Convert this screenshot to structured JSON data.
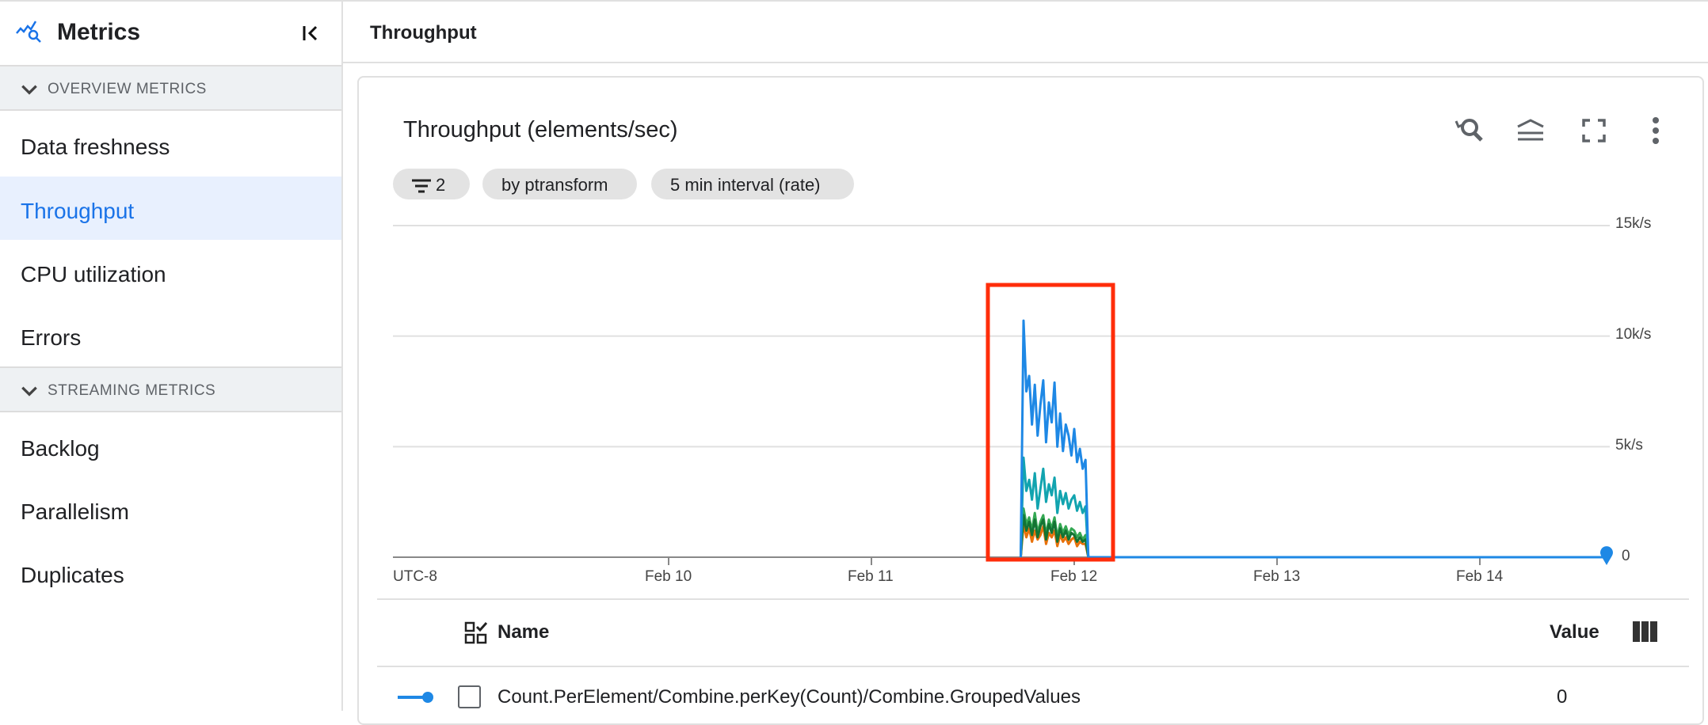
{
  "sidebar": {
    "title": "Metrics",
    "sections": [
      {
        "label": "OVERVIEW METRICS",
        "items": [
          {
            "label": "Data freshness"
          },
          {
            "label": "Throughput",
            "active": true
          },
          {
            "label": "CPU utilization"
          },
          {
            "label": "Errors"
          }
        ]
      },
      {
        "label": "STREAMING METRICS",
        "items": [
          {
            "label": "Backlog"
          },
          {
            "label": "Parallelism"
          },
          {
            "label": "Duplicates"
          }
        ]
      }
    ]
  },
  "header": {
    "title": "Throughput"
  },
  "card": {
    "title": "Throughput (elements/sec)",
    "icons": [
      "zoom-reset-icon",
      "legend-icon",
      "fullscreen-icon",
      "more-vert-icon"
    ],
    "chips": {
      "filter_count": "2",
      "group_by": "by ptransform",
      "interval": "5 min interval (rate)"
    }
  },
  "chart_data": {
    "type": "line",
    "timezone_label": "UTC-8",
    "x_ticks": [
      "Feb 10",
      "Feb 11",
      "Feb 12",
      "Feb 13",
      "Feb 14"
    ],
    "y_ticks": [
      "15k/s",
      "10k/s",
      "5k/s",
      "0"
    ],
    "ylim": [
      0,
      15000
    ],
    "grid": true,
    "highlight_box_color": "#ff2d0a",
    "x": [
      "Feb 11 17:40",
      "Feb 11 18:00",
      "Feb 11 18:20",
      "Feb 11 18:40",
      "Feb 11 19:00",
      "Feb 11 19:20",
      "Feb 11 19:40",
      "Feb 11 20:00",
      "Feb 11 20:20",
      "Feb 11 20:40",
      "Feb 11 21:00",
      "Feb 11 21:20",
      "Feb 11 21:40",
      "Feb 11 22:00",
      "Feb 11 22:20",
      "Feb 11 22:40",
      "Feb 11 23:00",
      "Feb 11 23:20",
      "Feb 11 23:40",
      "Feb 12 00:00",
      "Feb 12 00:20",
      "Feb 12 00:40",
      "Feb 12 01:00",
      "Feb 12 01:20",
      "Feb 12 01:40",
      "Feb 14 15:00"
    ],
    "series": [
      {
        "color": "#34a853",
        "values": [
          0,
          2200,
          1500,
          1800,
          1200,
          2000,
          1100,
          1600,
          1900,
          1000,
          1700,
          1300,
          1800,
          900,
          1500,
          1100,
          1400,
          1000,
          1300,
          1200,
          900,
          1100,
          800,
          1000,
          0,
          0
        ]
      },
      {
        "color": "#e8710a",
        "values": [
          0,
          1500,
          900,
          1300,
          700,
          1200,
          800,
          1000,
          1400,
          600,
          1100,
          900,
          1200,
          500,
          1000,
          700,
          900,
          600,
          800,
          900,
          500,
          700,
          600,
          600,
          0,
          0
        ]
      },
      {
        "color": "#137333",
        "values": [
          0,
          1900,
          1200,
          1600,
          1000,
          1700,
          900,
          1400,
          1700,
          800,
          1500,
          1100,
          1600,
          700,
          1300,
          900,
          1200,
          800,
          1100,
          1000,
          700,
          900,
          700,
          800,
          0,
          0
        ]
      },
      {
        "color": "#12a4af",
        "values": [
          0,
          4500,
          3000,
          3500,
          2600,
          3800,
          2200,
          3100,
          4000,
          2500,
          3300,
          2800,
          3600,
          2000,
          3000,
          2400,
          2900,
          2200,
          2600,
          2800,
          2100,
          2500,
          2000,
          2300,
          0,
          0
        ]
      },
      {
        "color": "#1e88e5",
        "values": [
          0,
          10700,
          7500,
          8200,
          6000,
          7800,
          5500,
          6900,
          8000,
          5200,
          7000,
          6100,
          7900,
          5000,
          6500,
          4800,
          6000,
          5500,
          4600,
          5800,
          4300,
          4900,
          4000,
          4400,
          0,
          0
        ]
      }
    ]
  },
  "table": {
    "columns": {
      "name": "Name",
      "value": "Value"
    },
    "rows": [
      {
        "name": "Count.PerElement/Combine.perKey(Count)/Combine.GroupedValues",
        "value": "0",
        "color": "#1e88e5"
      }
    ]
  }
}
